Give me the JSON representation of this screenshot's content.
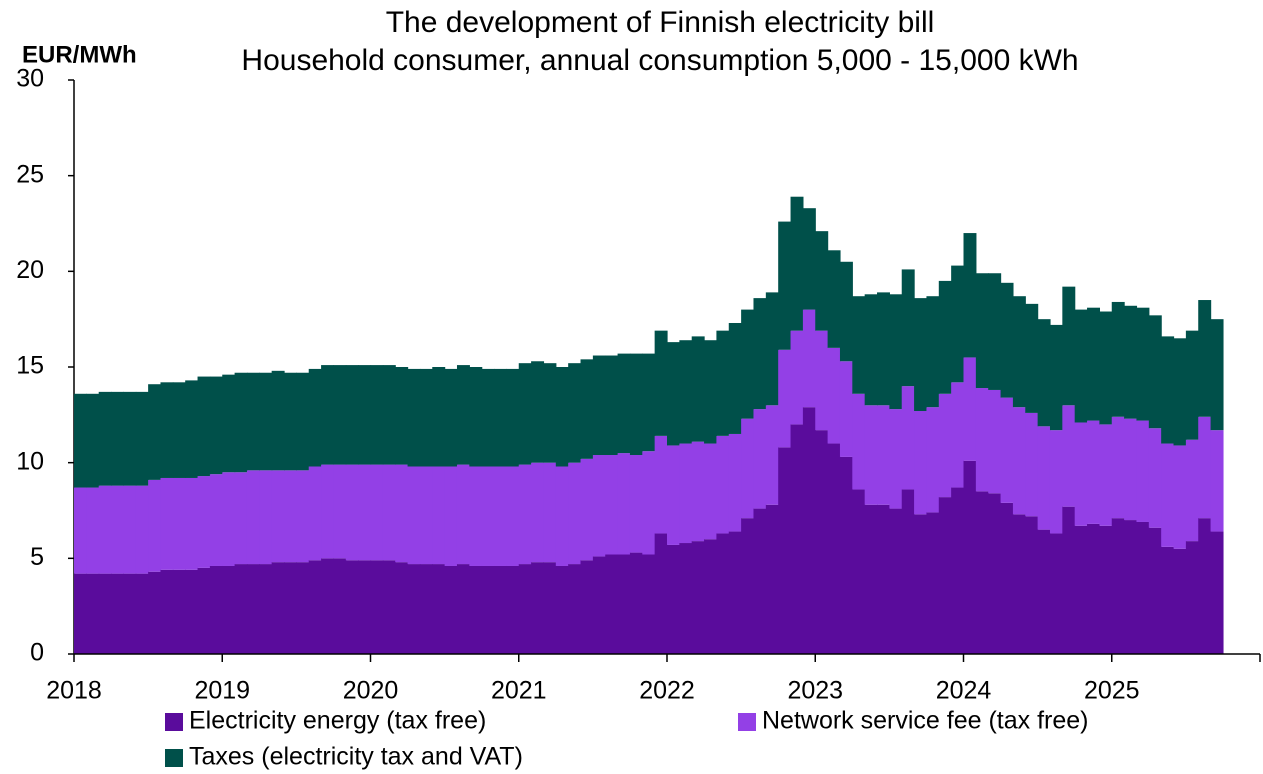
{
  "chart_data": {
    "type": "stacked_bar",
    "title": "The development of Finnish electricity bill",
    "subtitle": "Household consumer, annual consumption 5,000 - 15,000 kWh",
    "ylabel": "EUR/MWh",
    "categories": [
      "2018",
      null,
      null,
      null,
      null,
      null,
      null,
      null,
      null,
      null,
      null,
      null,
      "2019",
      null,
      null,
      null,
      null,
      null,
      null,
      null,
      null,
      null,
      null,
      null,
      "2020",
      null,
      null,
      null,
      null,
      null,
      null,
      null,
      null,
      null,
      null,
      null,
      "2021",
      null,
      null,
      null,
      null,
      null,
      null,
      null,
      null,
      null,
      null,
      null,
      "2022",
      null,
      null,
      null,
      null,
      null,
      null,
      null,
      null,
      null,
      null,
      null,
      "2023",
      null,
      null,
      null,
      null,
      null,
      null,
      null,
      null,
      null,
      null,
      null,
      "2024",
      null,
      null,
      null,
      null,
      null,
      null,
      null,
      null,
      null,
      null,
      null,
      "2025",
      null,
      null,
      null,
      null,
      null,
      null,
      null,
      null
    ],
    "series": [
      {
        "name": "Electricity energy (tax free)",
        "color": "#5a0c9c",
        "values": [
          4.2,
          4.2,
          4.2,
          4.2,
          4.2,
          4.2,
          4.3,
          4.4,
          4.4,
          4.4,
          4.5,
          4.6,
          4.6,
          4.7,
          4.7,
          4.7,
          4.8,
          4.8,
          4.8,
          4.9,
          5.0,
          5.0,
          4.9,
          4.9,
          4.9,
          4.9,
          4.8,
          4.7,
          4.7,
          4.7,
          4.6,
          4.7,
          4.6,
          4.6,
          4.6,
          4.6,
          4.7,
          4.8,
          4.8,
          4.6,
          4.7,
          4.9,
          5.1,
          5.2,
          5.2,
          5.3,
          5.2,
          6.3,
          5.7,
          5.8,
          5.9,
          6.0,
          6.3,
          6.4,
          7.1,
          7.6,
          7.8,
          10.8,
          12.0,
          12.9,
          11.7,
          11.0,
          10.3,
          8.6,
          7.8,
          7.8,
          7.6,
          8.6,
          7.3,
          7.4,
          8.2,
          8.7,
          10.1,
          8.5,
          8.4,
          7.9,
          7.3,
          7.2,
          6.5,
          6.3,
          7.7,
          6.7,
          6.8,
          6.7,
          7.1,
          7.0,
          6.9,
          6.6,
          5.6,
          5.5,
          5.9,
          7.1,
          6.4
        ]
      },
      {
        "name": "Network service fee (tax free)",
        "color": "#9340e6",
        "values": [
          4.5,
          4.5,
          4.6,
          4.6,
          4.6,
          4.6,
          4.8,
          4.8,
          4.8,
          4.8,
          4.8,
          4.8,
          4.9,
          4.8,
          4.9,
          4.9,
          4.8,
          4.8,
          4.8,
          4.9,
          4.9,
          4.9,
          5.0,
          5.0,
          5.0,
          5.0,
          5.1,
          5.1,
          5.1,
          5.1,
          5.2,
          5.2,
          5.2,
          5.2,
          5.2,
          5.2,
          5.2,
          5.2,
          5.2,
          5.2,
          5.3,
          5.3,
          5.3,
          5.2,
          5.3,
          5.1,
          5.4,
          5.1,
          5.2,
          5.2,
          5.2,
          5.0,
          5.1,
          5.1,
          5.2,
          5.2,
          5.2,
          5.1,
          4.9,
          5.1,
          5.2,
          5.0,
          5.0,
          5.0,
          5.2,
          5.2,
          5.2,
          5.4,
          5.4,
          5.5,
          5.4,
          5.5,
          5.4,
          5.4,
          5.4,
          5.5,
          5.6,
          5.4,
          5.4,
          5.4,
          5.3,
          5.4,
          5.4,
          5.3,
          5.3,
          5.3,
          5.3,
          5.2,
          5.4,
          5.4,
          5.3,
          5.3,
          5.3
        ]
      },
      {
        "name": "Taxes (electricity tax and VAT)",
        "color": "#00504a",
        "values": [
          4.9,
          4.9,
          4.9,
          4.9,
          4.9,
          4.9,
          5.0,
          5.0,
          5.0,
          5.1,
          5.2,
          5.1,
          5.1,
          5.2,
          5.1,
          5.1,
          5.2,
          5.1,
          5.1,
          5.1,
          5.2,
          5.2,
          5.2,
          5.2,
          5.2,
          5.2,
          5.1,
          5.1,
          5.1,
          5.2,
          5.1,
          5.2,
          5.2,
          5.1,
          5.1,
          5.1,
          5.3,
          5.3,
          5.2,
          5.2,
          5.2,
          5.2,
          5.2,
          5.2,
          5.2,
          5.3,
          5.1,
          5.5,
          5.4,
          5.4,
          5.5,
          5.4,
          5.5,
          5.8,
          5.7,
          5.8,
          5.9,
          6.7,
          7.0,
          5.3,
          5.2,
          5.1,
          5.2,
          5.1,
          5.8,
          5.9,
          6.0,
          6.1,
          5.9,
          5.8,
          5.9,
          6.1,
          6.5,
          6.0,
          6.1,
          6.0,
          5.8,
          5.7,
          5.6,
          5.5,
          6.2,
          5.9,
          5.9,
          5.9,
          6.0,
          5.9,
          5.9,
          5.9,
          5.6,
          5.6,
          5.7,
          6.1,
          5.8
        ]
      }
    ],
    "ylim": [
      0,
      30
    ],
    "yticks": [
      0,
      5,
      10,
      15,
      20,
      25,
      30
    ],
    "grid": false
  }
}
